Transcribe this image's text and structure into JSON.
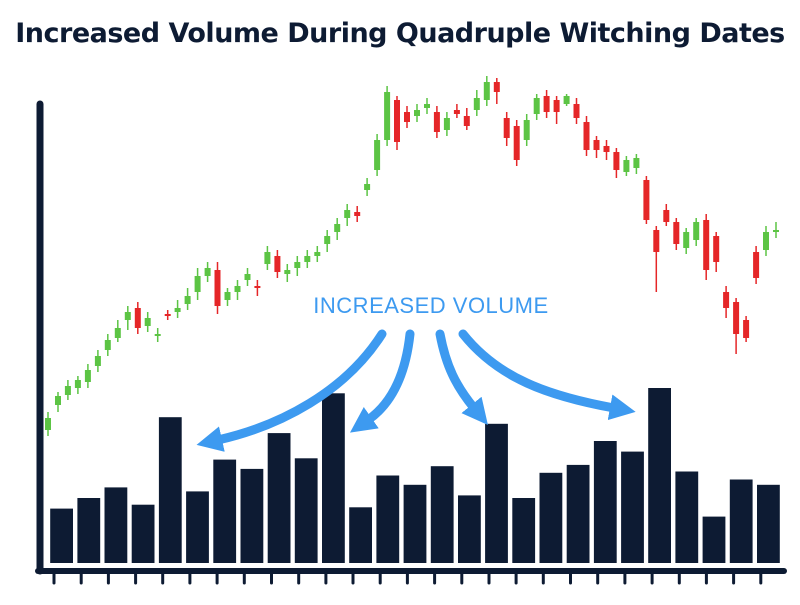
{
  "title": "Increased Volume During Quadruple Witching Dates",
  "annotation": "INCREASED VOLUME",
  "colors": {
    "up": "#5cc444",
    "down": "#e52628",
    "volume": "#0d1b33",
    "axis": "#0d1b33",
    "annotation": "#3d9af0"
  },
  "chart_data": {
    "type": "candlestick",
    "price_candles": [
      [
        430,
        418,
        412,
        436
      ],
      [
        405,
        396,
        392,
        412
      ],
      [
        395,
        386,
        380,
        400
      ],
      [
        388,
        380,
        376,
        394
      ],
      [
        382,
        370,
        364,
        388
      ],
      [
        366,
        356,
        350,
        372
      ],
      [
        350,
        340,
        334,
        356
      ],
      [
        338,
        328,
        320,
        342
      ],
      [
        320,
        312,
        306,
        330
      ],
      [
        308,
        328,
        302,
        334
      ],
      [
        326,
        318,
        312,
        332
      ],
      [
        336,
        334,
        328,
        342
      ],
      [
        314,
        316,
        310,
        320
      ],
      [
        312,
        308,
        300,
        318
      ],
      [
        304,
        296,
        288,
        310
      ],
      [
        292,
        276,
        268,
        300
      ],
      [
        276,
        268,
        262,
        282
      ],
      [
        270,
        306,
        262,
        314
      ],
      [
        300,
        292,
        288,
        306
      ],
      [
        292,
        286,
        280,
        300
      ],
      [
        280,
        274,
        268,
        286
      ],
      [
        286,
        288,
        280,
        296
      ],
      [
        264,
        252,
        246,
        270
      ],
      [
        256,
        272,
        250,
        278
      ],
      [
        274,
        270,
        264,
        282
      ],
      [
        268,
        262,
        256,
        276
      ],
      [
        262,
        256,
        250,
        268
      ],
      [
        256,
        252,
        246,
        262
      ],
      [
        244,
        236,
        230,
        252
      ],
      [
        232,
        224,
        218,
        240
      ],
      [
        218,
        210,
        204,
        226
      ],
      [
        212,
        216,
        206,
        222
      ],
      [
        190,
        184,
        178,
        196
      ],
      [
        170,
        140,
        134,
        176
      ],
      [
        140,
        92,
        86,
        146
      ],
      [
        100,
        142,
        96,
        150
      ],
      [
        112,
        122,
        106,
        128
      ],
      [
        116,
        110,
        104,
        122
      ],
      [
        108,
        104,
        98,
        114
      ],
      [
        112,
        132,
        106,
        138
      ],
      [
        130,
        118,
        112,
        136
      ],
      [
        110,
        114,
        104,
        118
      ],
      [
        116,
        126,
        108,
        130
      ],
      [
        110,
        98,
        90,
        116
      ],
      [
        100,
        82,
        76,
        106
      ],
      [
        82,
        92,
        78,
        104
      ],
      [
        118,
        138,
        112,
        146
      ],
      [
        126,
        160,
        120,
        166
      ],
      [
        140,
        120,
        114,
        146
      ],
      [
        114,
        98,
        94,
        120
      ],
      [
        96,
        112,
        90,
        118
      ],
      [
        100,
        112,
        96,
        124
      ],
      [
        104,
        96,
        94,
        106
      ],
      [
        104,
        118,
        98,
        124
      ],
      [
        122,
        150,
        116,
        156
      ],
      [
        140,
        150,
        136,
        158
      ],
      [
        146,
        152,
        140,
        160
      ],
      [
        152,
        170,
        148,
        178
      ],
      [
        172,
        160,
        156,
        176
      ],
      [
        168,
        158,
        154,
        174
      ],
      [
        180,
        220,
        176,
        224
      ],
      [
        230,
        252,
        226,
        292
      ],
      [
        210,
        222,
        204,
        226
      ],
      [
        222,
        244,
        218,
        250
      ],
      [
        248,
        232,
        228,
        254
      ],
      [
        240,
        222,
        218,
        246
      ],
      [
        220,
        270,
        214,
        280
      ],
      [
        236,
        262,
        232,
        272
      ],
      [
        292,
        308,
        286,
        318
      ],
      [
        302,
        334,
        298,
        354
      ],
      [
        320,
        338,
        316,
        342
      ],
      [
        252,
        278,
        246,
        284
      ],
      [
        250,
        232,
        226,
        256
      ],
      [
        232,
        230,
        222,
        238
      ]
    ],
    "volume": [
      41,
      49,
      57,
      44,
      110,
      54,
      78,
      71,
      98,
      79,
      128,
      42,
      66,
      59,
      73,
      51,
      105,
      49,
      68,
      74,
      92,
      84,
      132,
      69,
      35,
      63,
      59
    ],
    "xlabel": "",
    "ylabel": ""
  }
}
